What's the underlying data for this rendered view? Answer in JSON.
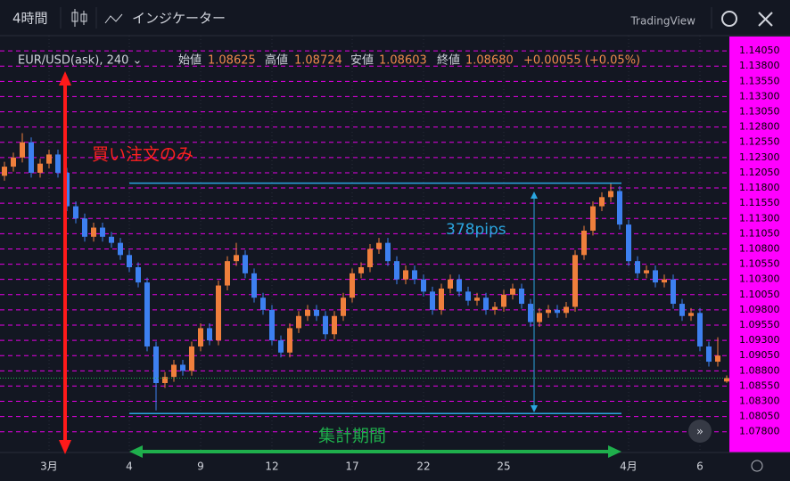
{
  "toolbar": {
    "interval": "4時間",
    "indicators": "インジケーター",
    "brand": "TradingView"
  },
  "header": {
    "symbol": "EUR/USD(ask), 240 ⌄",
    "open_label": "始値",
    "open": "1.08625",
    "high_label": "高値",
    "high": "1.08724",
    "low_label": "安値",
    "low": "1.08603",
    "close_label": "終値",
    "close": "1.08680",
    "change": "+0.00055 (+0.05%)"
  },
  "annotations": {
    "buy_only": "買い注文のみ",
    "range": "378pips",
    "period": "集計期間"
  },
  "chart_data": {
    "type": "candlestick",
    "up_color": "#ef7f3c",
    "down_color": "#3d80f0",
    "grid_color": "#e600e6",
    "range_color": "#2ba6e0",
    "last_color": "#1fae4c",
    "categories": [
      null,
      null,
      null,
      null,
      null,
      "3月",
      null,
      null,
      null,
      null,
      null,
      null,
      null,
      null,
      "4",
      null,
      null,
      null,
      null,
      null,
      null,
      null,
      "9",
      null,
      null,
      null,
      null,
      null,
      null,
      null,
      "12",
      null,
      null,
      null,
      null,
      null,
      null,
      null,
      null,
      "17",
      null,
      null,
      null,
      null,
      null,
      null,
      null,
      "22",
      null,
      null,
      null,
      null,
      null,
      null,
      null,
      null,
      "25",
      null,
      null,
      null,
      null,
      null,
      null,
      null,
      null,
      null,
      null,
      null,
      null,
      null,
      "4月",
      null,
      null,
      null,
      null,
      null,
      null,
      null,
      "6",
      null,
      null,
      null
    ],
    "open": [
      1.12,
      1.1215,
      1.123,
      1.1255,
      1.1205,
      1.122,
      1.1235,
      1.1205,
      1.115,
      1.113,
      1.11,
      1.1115,
      1.11,
      1.109,
      1.107,
      1.105,
      1.1025,
      1.092,
      1.086,
      1.087,
      1.089,
      1.088,
      1.092,
      1.095,
      1.093,
      1.102,
      1.106,
      1.107,
      1.104,
      1.1,
      1.098,
      1.093,
      1.091,
      1.095,
      1.097,
      1.098,
      1.097,
      1.094,
      1.097,
      1.1,
      1.104,
      1.105,
      1.108,
      1.109,
      1.106,
      1.103,
      1.1045,
      1.103,
      1.101,
      1.098,
      1.1015,
      1.103,
      1.101,
      1.0995,
      1.1,
      1.098,
      1.0985,
      1.1005,
      1.1015,
      1.099,
      1.096,
      1.0975,
      1.098,
      1.0975,
      1.0985,
      1.107,
      1.111,
      1.115,
      1.1165,
      1.1175,
      1.112,
      1.106,
      1.104,
      1.1045,
      1.1025,
      1.103,
      1.099,
      1.097,
      1.0975,
      1.092,
      1.0895,
      1.08625
    ],
    "high": [
      1.1223,
      1.1238,
      1.127,
      1.1263,
      1.1228,
      1.1243,
      1.1243,
      1.1213,
      1.1158,
      1.1138,
      1.1123,
      1.1123,
      1.1108,
      1.1098,
      1.1078,
      1.1058,
      1.1033,
      1.0928,
      1.0878,
      1.0898,
      1.0898,
      1.0928,
      1.0958,
      1.0958,
      1.1028,
      1.1068,
      1.109,
      1.1078,
      1.1048,
      1.1008,
      1.0988,
      1.0938,
      1.0958,
      1.0978,
      1.0988,
      1.0988,
      1.0978,
      1.0978,
      1.1008,
      1.1048,
      1.1058,
      1.1088,
      1.1098,
      1.1098,
      1.1068,
      1.1053,
      1.1053,
      1.1038,
      1.1018,
      1.1023,
      1.1038,
      1.1038,
      1.1018,
      1.1008,
      1.1008,
      1.0993,
      1.1013,
      1.1023,
      1.1023,
      1.0998,
      1.0983,
      1.0988,
      1.0988,
      1.0993,
      1.1078,
      1.1118,
      1.1158,
      1.1173,
      1.1188,
      1.1183,
      1.1128,
      1.1068,
      1.1053,
      1.1053,
      1.1038,
      1.1038,
      1.0998,
      1.0983,
      1.0983,
      1.0928,
      1.0935,
      1.08724
    ],
    "low": [
      1.1192,
      1.1207,
      1.1222,
      1.1197,
      1.1197,
      1.1212,
      1.1197,
      1.1142,
      1.1122,
      1.1092,
      1.1092,
      1.1092,
      1.1082,
      1.1062,
      1.1042,
      1.1017,
      1.0912,
      1.0815,
      1.0852,
      1.0862,
      1.0872,
      1.0872,
      1.0912,
      1.0922,
      1.0922,
      1.1012,
      1.1052,
      1.1032,
      1.0992,
      1.0972,
      1.0922,
      1.0902,
      1.0902,
      1.0942,
      1.0962,
      1.0962,
      1.0932,
      1.0932,
      1.0962,
      1.0992,
      1.1032,
      1.1042,
      1.1072,
      1.1052,
      1.1022,
      1.1022,
      1.1022,
      1.1002,
      1.0972,
      1.0972,
      1.1007,
      1.1002,
      1.0987,
      1.0987,
      1.0972,
      1.0972,
      1.0977,
      1.0997,
      1.0982,
      1.0952,
      1.0952,
      1.0967,
      1.0967,
      1.0967,
      1.0977,
      1.1062,
      1.1102,
      1.1142,
      1.1157,
      1.1112,
      1.1052,
      1.1032,
      1.1032,
      1.1017,
      1.1017,
      1.0982,
      1.0962,
      1.0962,
      1.0912,
      1.0887,
      1.0887,
      1.08603
    ],
    "close": [
      1.1215,
      1.123,
      1.1255,
      1.1205,
      1.122,
      1.1235,
      1.1205,
      1.115,
      1.113,
      1.11,
      1.1115,
      1.11,
      1.109,
      1.107,
      1.105,
      1.1025,
      1.092,
      1.086,
      1.087,
      1.089,
      1.088,
      1.092,
      1.095,
      1.093,
      1.102,
      1.106,
      1.107,
      1.104,
      1.1,
      1.098,
      1.093,
      1.091,
      1.095,
      1.097,
      1.098,
      1.097,
      1.094,
      1.097,
      1.1,
      1.104,
      1.105,
      1.108,
      1.109,
      1.106,
      1.103,
      1.1045,
      1.103,
      1.101,
      1.098,
      1.1015,
      1.103,
      1.101,
      1.0995,
      1.1,
      1.098,
      1.0985,
      1.1005,
      1.1015,
      1.099,
      1.096,
      1.0975,
      1.098,
      1.0975,
      1.0985,
      1.107,
      1.111,
      1.115,
      1.1165,
      1.1175,
      1.112,
      1.106,
      1.104,
      1.1045,
      1.1025,
      1.103,
      1.099,
      1.097,
      1.0975,
      1.092,
      1.0895,
      1.0905,
      1.0868
    ],
    "range_lines": [
      1.1188,
      1.081
    ],
    "ylim": [
      1.0746,
      1.143
    ],
    "yticks": [
      {
        "value": 1.1405,
        "label": "1.14050"
      },
      {
        "value": 1.138,
        "label": "1.13800"
      },
      {
        "value": 1.1355,
        "label": "1.13550"
      },
      {
        "value": 1.133,
        "label": "1.13300"
      },
      {
        "value": 1.1305,
        "label": "1.13050"
      },
      {
        "value": 1.128,
        "label": "1.12800"
      },
      {
        "value": 1.1255,
        "label": "1.12550"
      },
      {
        "value": 1.123,
        "label": "1.12300"
      },
      {
        "value": 1.1205,
        "label": "1.12050"
      },
      {
        "value": 1.118,
        "label": "1.11800"
      },
      {
        "value": 1.1155,
        "label": "1.11550"
      },
      {
        "value": 1.113,
        "label": "1.11300"
      },
      {
        "value": 1.1105,
        "label": "1.11050"
      },
      {
        "value": 1.108,
        "label": "1.10800"
      },
      {
        "value": 1.1055,
        "label": "1.10550"
      },
      {
        "value": 1.103,
        "label": "1.10300"
      },
      {
        "value": 1.1005,
        "label": "1.10050"
      },
      {
        "value": 1.098,
        "label": "1.09800"
      },
      {
        "value": 1.0955,
        "label": "1.09550"
      },
      {
        "value": 1.093,
        "label": "1.09300"
      },
      {
        "value": 1.0905,
        "label": "1.09050"
      },
      {
        "value": 1.088,
        "label": "1.08800"
      },
      {
        "value": 1.0855,
        "label": "1.08550"
      },
      {
        "value": 1.083,
        "label": "1.08300"
      },
      {
        "value": 1.0805,
        "label": "1.08050"
      },
      {
        "value": 1.078,
        "label": "1.07800"
      }
    ],
    "grid": true
  }
}
